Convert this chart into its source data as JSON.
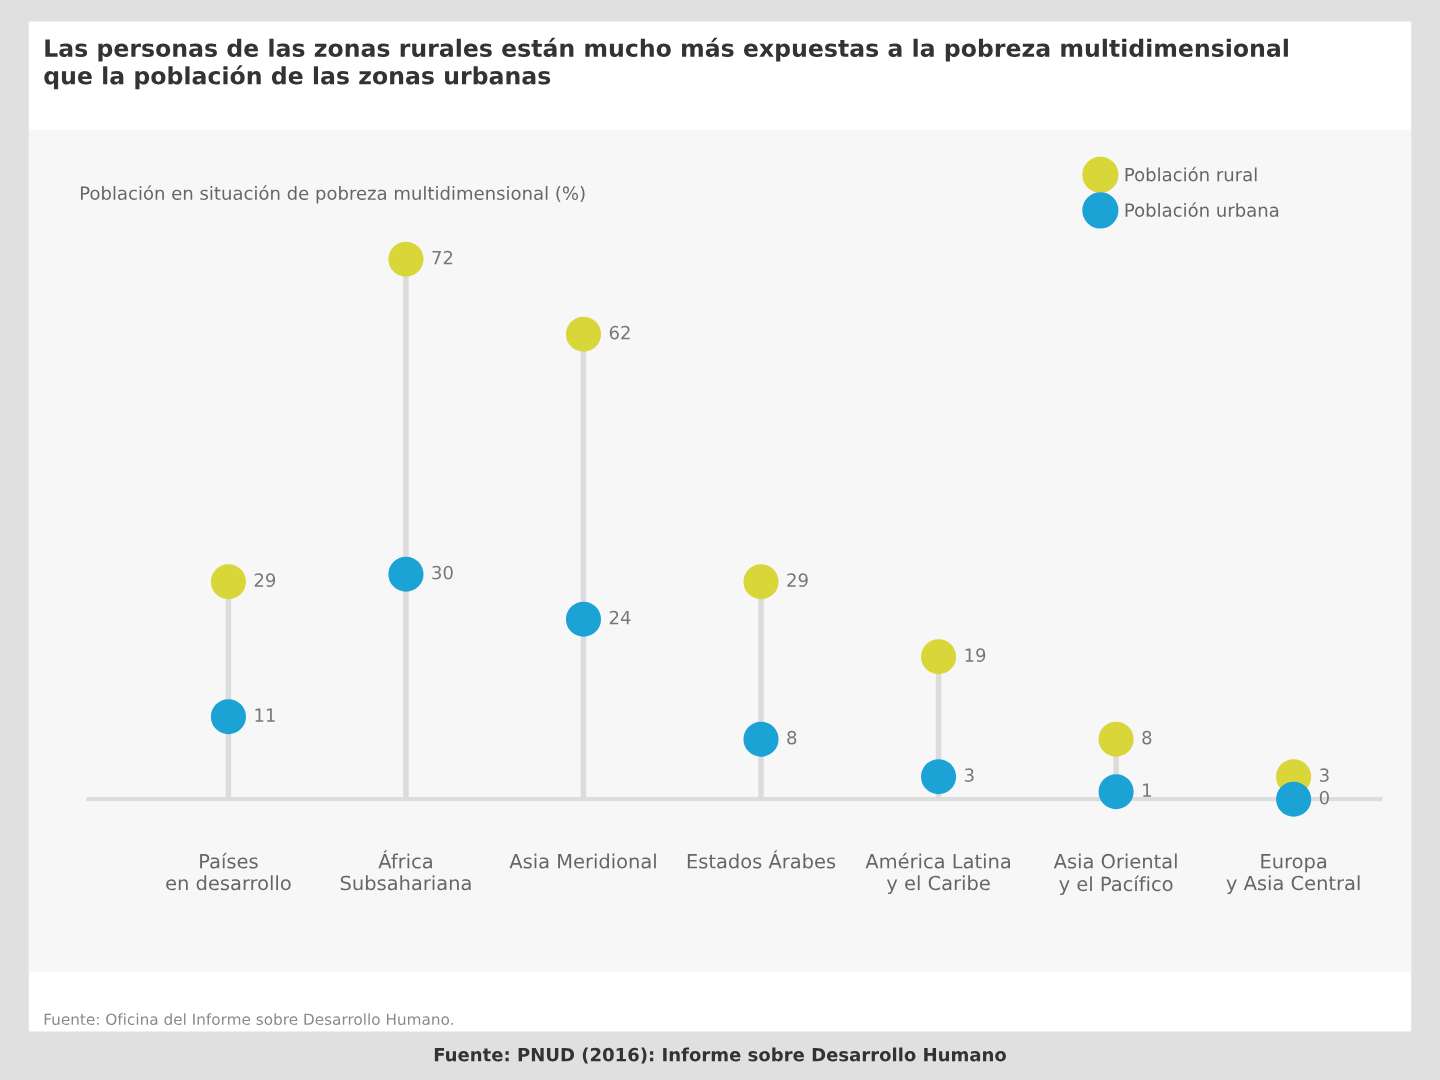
{
  "chart_data": {
    "type": "lollipop",
    "title": "Las personas de las zonas rurales están mucho más expuestas a la pobreza multidimensional\nque la población de las zonas urbanas",
    "ylabel": "Población en situación de pobreza multidimensional (%)",
    "categories": [
      "Países\nen desarrollo",
      "África\nSubsahariana",
      "Asia Meridional",
      "Estados Árabes",
      "América Latina\ny el Caribe",
      "Asia Oriental\ny el Pacífico",
      "Europa\ny Asia Central"
    ],
    "series": [
      {
        "name": "Población rural",
        "color": "#d9d63a",
        "values": [
          29,
          72,
          62,
          29,
          19,
          8,
          3
        ]
      },
      {
        "name": "Población urbana",
        "color": "#1ba3d6",
        "values": [
          11,
          30,
          24,
          8,
          3,
          1,
          0
        ]
      }
    ],
    "data_labels": true,
    "legend": "top right",
    "marker": "circle",
    "annotations": [
      "Fuente: Oficina del Informe sobre Desarrollo Humano.",
      "Fuente: PNUD (2016): Informe sobre Desarrollo Humano"
    ]
  }
}
